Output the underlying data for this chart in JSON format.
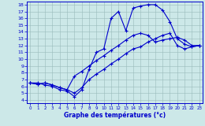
{
  "title": "",
  "xlabel": "Graphe des températures (°c)",
  "background_color": "#cce8e8",
  "line_color": "#0000cc",
  "xlim": [
    -0.5,
    23.5
  ],
  "ylim": [
    3.5,
    18.5
  ],
  "xticks": [
    0,
    1,
    2,
    3,
    4,
    5,
    6,
    7,
    8,
    9,
    10,
    11,
    12,
    13,
    14,
    15,
    16,
    17,
    18,
    19,
    20,
    21,
    22,
    23
  ],
  "yticks": [
    4,
    5,
    6,
    7,
    8,
    9,
    10,
    11,
    12,
    13,
    14,
    15,
    16,
    17,
    18
  ],
  "curve1_x": [
    0,
    1,
    2,
    3,
    4,
    5,
    6,
    7,
    8,
    9,
    10,
    11,
    12,
    13,
    14,
    15,
    16,
    17,
    18,
    19,
    20,
    21,
    22,
    23
  ],
  "curve1_y": [
    6.5,
    6.5,
    6.2,
    6.0,
    5.5,
    5.3,
    4.5,
    5.5,
    8.5,
    11.0,
    11.5,
    16.0,
    17.0,
    14.2,
    17.5,
    17.8,
    18.0,
    18.0,
    17.2,
    15.5,
    13.0,
    12.2,
    11.8,
    12.0
  ],
  "curve2_x": [
    0,
    1,
    2,
    3,
    4,
    5,
    6,
    7,
    8,
    9,
    10,
    11,
    12,
    13,
    14,
    15,
    16,
    17,
    18,
    19,
    20,
    21,
    22,
    23
  ],
  "curve2_y": [
    6.5,
    6.3,
    6.5,
    6.2,
    5.8,
    5.5,
    7.5,
    8.2,
    9.0,
    9.8,
    10.5,
    11.3,
    12.0,
    12.8,
    13.5,
    13.8,
    13.5,
    12.5,
    12.8,
    13.0,
    13.2,
    12.8,
    12.0,
    12.0
  ],
  "curve3_x": [
    0,
    1,
    2,
    3,
    4,
    5,
    6,
    7,
    8,
    9,
    10,
    11,
    12,
    13,
    14,
    15,
    16,
    17,
    18,
    19,
    20,
    21,
    22,
    23
  ],
  "curve3_y": [
    6.5,
    6.3,
    6.5,
    6.2,
    5.8,
    5.5,
    5.0,
    5.8,
    7.0,
    7.8,
    8.5,
    9.3,
    10.0,
    10.8,
    11.5,
    11.8,
    12.5,
    13.0,
    13.5,
    13.8,
    12.0,
    11.5,
    11.8,
    12.0
  ],
  "marker": "+"
}
